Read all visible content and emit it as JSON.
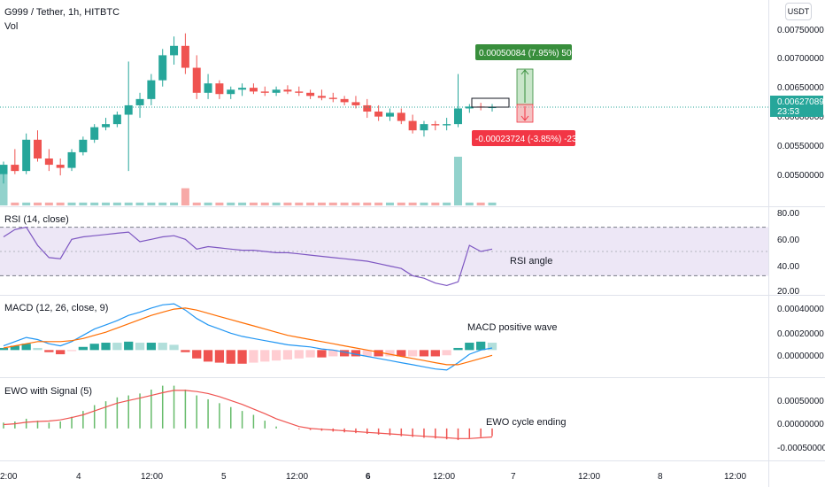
{
  "header": {
    "symbol_line": "G999 / Tether, 1h, HITBTC",
    "volume_label": "Vol",
    "currency": "USDT"
  },
  "price_axis": {
    "ticks": [
      "0.00750000",
      "0.00700000",
      "0.00650000",
      "0.00600000",
      "0.00550000",
      "0.00500000"
    ],
    "current_price": "0.00627089",
    "countdown": "23:53"
  },
  "measure": {
    "up_label": "0.00050084 (7.95%) 50084",
    "down_label": "-0.00023724 (-3.85%) -23724"
  },
  "rsi": {
    "title": "RSI (14, close)",
    "ticks": [
      "80.00",
      "60.00",
      "40.00",
      "20.00"
    ],
    "annotation": "RSI angle"
  },
  "macd": {
    "title": "MACD (12, 26, close, 9)",
    "ticks": [
      "0.00040000",
      "0.00020000",
      "0.00000000"
    ],
    "annotation": "MACD positive wave"
  },
  "ewo": {
    "title": "EWO with Signal (5)",
    "ticks": [
      "0.00050000",
      "0.00000000",
      "-0.00050000"
    ],
    "annotation": "EWO cycle ending"
  },
  "time_axis": {
    "ticks": [
      "2:00",
      "4",
      "12:00",
      "5",
      "12:00",
      "6",
      "12:00",
      "7",
      "12:00",
      "8",
      "12:00"
    ],
    "bold_ticks": [
      "6"
    ]
  },
  "colors": {
    "up": "#26a69a",
    "down": "#ef5350",
    "rsi_line": "#7e57c2",
    "rsi_band": "#ede7f6",
    "macd_line": "#2196f3",
    "signal_line": "#ff6d00",
    "ewo_up": "#66bb6a",
    "ewo_signal": "#ef5350",
    "measure_up": "#388e3c",
    "measure_down": "#f23645",
    "price_tag": "#26a69a",
    "annotation_line": "#26a69a",
    "ann_text": "#131722"
  },
  "chart_data": {
    "type": "candlestick",
    "x": [
      "3 01:00",
      "3 03:00",
      "3 05:00",
      "3 07:00",
      "3 09:00",
      "3 11:00",
      "3 13:00",
      "3 15:00",
      "3 17:00",
      "3 19:00",
      "4 00:00",
      "4 02:00",
      "4 04:00",
      "4 06:00",
      "4 08:00",
      "4 10:00",
      "4 12:00",
      "4 14:00",
      "4 16:00",
      "4 18:00",
      "4 20:00",
      "4 22:00",
      "5 00:00",
      "5 02:00",
      "5 04:00",
      "5 06:00",
      "5 08:00",
      "5 10:00",
      "5 12:00",
      "5 14:00",
      "5 16:00",
      "5 18:00",
      "5 20:00",
      "5 22:00",
      "6 00:00",
      "6 02:00",
      "6 04:00",
      "6 06:00",
      "6 08:00",
      "6 10:00",
      "6 12:00",
      "6 14:00",
      "6 16:00",
      "6 18:00"
    ],
    "ohlc": [
      [
        0.0052,
        0.0054,
        0.00505,
        0.00535
      ],
      [
        0.00535,
        0.0056,
        0.0052,
        0.00525
      ],
      [
        0.00525,
        0.00585,
        0.0052,
        0.00575
      ],
      [
        0.00575,
        0.0059,
        0.0054,
        0.00545
      ],
      [
        0.00545,
        0.0056,
        0.00525,
        0.00535
      ],
      [
        0.00535,
        0.00545,
        0.00518,
        0.0053
      ],
      [
        0.0053,
        0.0056,
        0.00525,
        0.00555
      ],
      [
        0.00555,
        0.0058,
        0.0055,
        0.00575
      ],
      [
        0.00575,
        0.006,
        0.0057,
        0.00595
      ],
      [
        0.00595,
        0.0061,
        0.0059,
        0.006
      ],
      [
        0.006,
        0.0062,
        0.00595,
        0.00615
      ],
      [
        0.00615,
        0.007,
        0.00525,
        0.0063
      ],
      [
        0.0063,
        0.0065,
        0.0061,
        0.0064
      ],
      [
        0.0064,
        0.0068,
        0.0063,
        0.0067
      ],
      [
        0.0067,
        0.0072,
        0.0066,
        0.0071
      ],
      [
        0.0071,
        0.0074,
        0.00695,
        0.00725
      ],
      [
        0.00725,
        0.00745,
        0.0068,
        0.0069
      ],
      [
        0.0069,
        0.0071,
        0.0064,
        0.0065
      ],
      [
        0.0065,
        0.0068,
        0.0064,
        0.00665
      ],
      [
        0.00665,
        0.0067,
        0.0064,
        0.00648
      ],
      [
        0.00648,
        0.0066,
        0.0064,
        0.00655
      ],
      [
        0.00655,
        0.00665,
        0.00645,
        0.00658
      ],
      [
        0.00658,
        0.00665,
        0.00648,
        0.00652
      ],
      [
        0.00652,
        0.0066,
        0.00645,
        0.0065
      ],
      [
        0.0065,
        0.0066,
        0.00645,
        0.00655
      ],
      [
        0.00655,
        0.00662,
        0.00648,
        0.00652
      ],
      [
        0.00652,
        0.0066,
        0.00645,
        0.0065
      ],
      [
        0.0065,
        0.00655,
        0.0064,
        0.00645
      ],
      [
        0.00645,
        0.00655,
        0.00638,
        0.00642
      ],
      [
        0.00642,
        0.0065,
        0.00635,
        0.0064
      ],
      [
        0.0064,
        0.00645,
        0.0063,
        0.00635
      ],
      [
        0.00635,
        0.00645,
        0.00625,
        0.0063
      ],
      [
        0.0063,
        0.0064,
        0.0061,
        0.0062
      ],
      [
        0.0062,
        0.0063,
        0.00605,
        0.00612
      ],
      [
        0.00612,
        0.00625,
        0.00605,
        0.00618
      ],
      [
        0.00618,
        0.00625,
        0.006,
        0.00605
      ],
      [
        0.00605,
        0.00615,
        0.00585,
        0.0059
      ],
      [
        0.0059,
        0.00605,
        0.0058,
        0.006
      ],
      [
        0.006,
        0.00605,
        0.0059,
        0.00598
      ],
      [
        0.00598,
        0.0061,
        0.0059,
        0.006
      ],
      [
        0.006,
        0.0068,
        0.00595,
        0.00625
      ],
      [
        0.00625,
        0.00632,
        0.00618,
        0.00628
      ],
      [
        0.00628,
        0.00634,
        0.00622,
        0.00627
      ],
      [
        0.00627,
        0.00632,
        0.0062,
        0.00627
      ]
    ],
    "volume": [
      12,
      1,
      1,
      1,
      1,
      1,
      1,
      1,
      1,
      1,
      1,
      1,
      1,
      1,
      1,
      1,
      6,
      1,
      1,
      1,
      1,
      1,
      1,
      1,
      1,
      1,
      1,
      1,
      1,
      1,
      1,
      1,
      1,
      1,
      1,
      1,
      1,
      1,
      1,
      1,
      17,
      1,
      1,
      1
    ],
    "rsi": [
      62,
      68,
      70,
      55,
      45,
      44,
      60,
      62,
      63,
      64,
      65,
      66,
      58,
      60,
      62,
      63,
      60,
      52,
      54,
      53,
      52,
      51,
      51,
      50,
      49,
      49,
      48,
      47,
      46,
      45,
      44,
      43,
      42,
      40,
      38,
      36,
      30,
      28,
      24,
      22,
      25,
      55,
      50,
      52
    ],
    "macd": [
      4e-05,
      8e-05,
      0.00012,
      0.0001,
      6e-05,
      4e-05,
      8e-05,
      0.00014,
      0.0002,
      0.00024,
      0.00028,
      0.00033,
      0.00036,
      0.0004,
      0.00043,
      0.00044,
      0.00038,
      0.0003,
      0.00024,
      0.0002,
      0.00016,
      0.00013,
      0.00011,
      9e-05,
      7e-05,
      5e-05,
      4e-05,
      3e-05,
      1e-05,
      0.0,
      -2e-05,
      -4e-05,
      -6e-05,
      -8e-05,
      -0.0001,
      -0.00012,
      -0.00014,
      -0.00016,
      -0.00018,
      -0.00019,
      -0.00012,
      -4e-05,
      0.0,
      2e-05
    ],
    "signal": [
      2e-05,
      4e-05,
      6e-05,
      8e-05,
      8e-05,
      8e-05,
      9e-05,
      0.00011,
      0.00014,
      0.00017,
      0.00021,
      0.00025,
      0.00029,
      0.00033,
      0.00036,
      0.00039,
      0.0004,
      0.00038,
      0.00035,
      0.00032,
      0.00029,
      0.00026,
      0.00023,
      0.0002,
      0.00017,
      0.00014,
      0.00012,
      0.0001,
      8e-05,
      6e-05,
      4e-05,
      2e-05,
      0.0,
      -2e-05,
      -4e-05,
      -6e-05,
      -8e-05,
      -0.0001,
      -0.00012,
      -0.00014,
      -0.00014,
      -0.00011,
      -8e-05,
      -5e-05
    ],
    "ewo": [
      0.00015,
      0.00018,
      0.00025,
      0.0002,
      0.00015,
      0.00018,
      0.0003,
      0.00045,
      0.0006,
      0.0007,
      0.0008,
      0.00085,
      0.0009,
      0.001,
      0.0011,
      0.0011,
      0.001,
      0.00085,
      0.00075,
      0.00065,
      0.00055,
      0.00045,
      0.00035,
      0.0002,
      5e-05,
      0.0,
      -2e-05,
      -4e-05,
      -6e-05,
      -8e-05,
      -0.0001,
      -0.00012,
      -0.00014,
      -0.00016,
      -0.00018,
      -0.0002,
      -0.00022,
      -0.00024,
      -0.00026,
      -0.00028,
      -0.0003,
      -0.00025,
      -0.00022,
      -0.0002
    ],
    "ewo_signal": [
      0.0001,
      0.00012,
      0.00016,
      0.00018,
      0.00019,
      0.00022,
      0.00028,
      0.00035,
      0.00045,
      0.00055,
      0.00065,
      0.00072,
      0.00078,
      0.00085,
      0.00092,
      0.00098,
      0.00098,
      0.00095,
      0.0009,
      0.00082,
      0.00072,
      0.00062,
      0.0005,
      0.00038,
      0.00025,
      0.00015,
      5e-05,
      0.0,
      -2e-05,
      -4e-05,
      -6e-05,
      -8e-05,
      -0.0001,
      -0.00012,
      -0.00014,
      -0.00016,
      -0.00018,
      -0.0002,
      -0.00022,
      -0.00024,
      -0.00026,
      -0.00026,
      -0.00024,
      -0.00022
    ],
    "ylim_price": [
      0.0047,
      0.0077
    ],
    "ylim_rsi": [
      15,
      85
    ],
    "ylim_macd": [
      -0.00025,
      0.0005
    ],
    "ylim_ewo": [
      -0.0008,
      0.00125
    ]
  }
}
